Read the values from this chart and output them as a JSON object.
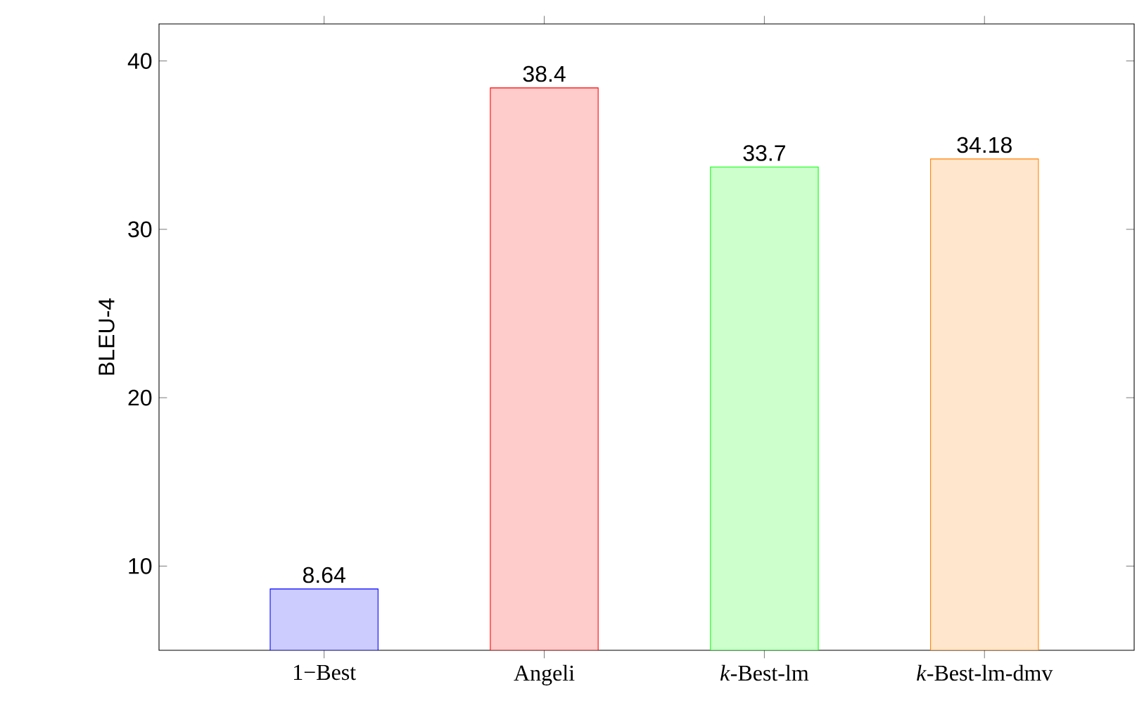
{
  "chart_data": {
    "type": "bar",
    "ylabel": "BLEU-4",
    "categories": [
      "1−Best",
      "Angeli",
      "*k*-Best-lm",
      "*k*-Best-lm-dmv"
    ],
    "values": [
      8.64,
      38.4,
      33.7,
      34.18
    ],
    "colors": [
      "#0000ff",
      "#ff0000",
      "#00ff00",
      "#ff8000"
    ],
    "ylim": [
      5,
      42.2
    ],
    "yticks": [
      10,
      20,
      30,
      40
    ],
    "grid": false,
    "data_labels": true
  }
}
